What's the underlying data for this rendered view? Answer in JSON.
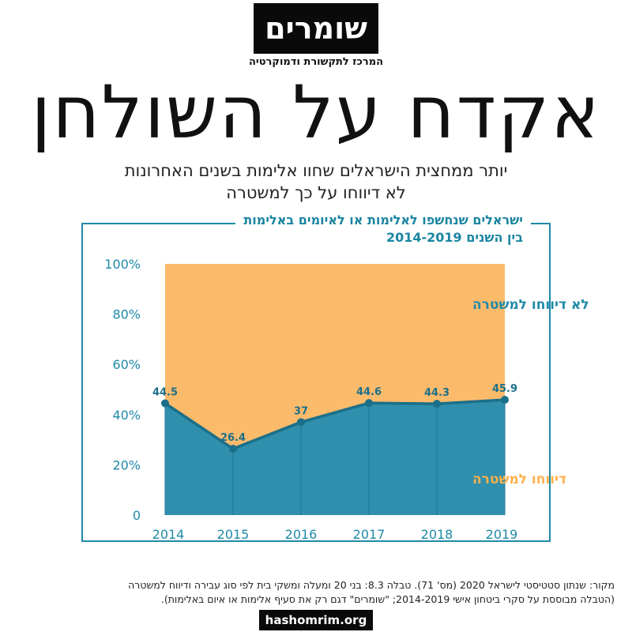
{
  "logo": {
    "name": "שומרים",
    "tagline": "המרכז לתקשורת ודמוקרטיה"
  },
  "headline": "אקדח על השולחן",
  "subtitle": {
    "line1": "יותר ממחצית הישראלים שחוו אלימות בשנים האחרונות",
    "line2": "לא דיווחו על כך למשטרה"
  },
  "chart_data": {
    "type": "area",
    "title_line1": "ישראלים שנחשפו לאלימות או לאיומים באלימות",
    "title_line2": "בין השנים 2014-2019",
    "x": [
      2014,
      2015,
      2016,
      2017,
      2018,
      2019
    ],
    "series": [
      {
        "name": "דיווחו למשטרה",
        "values": [
          44.5,
          26.4,
          37,
          44.6,
          44.3,
          45.9
        ],
        "color": "#2f8fad"
      },
      {
        "name": "לא דיווחו למשטרה",
        "values": [
          55.5,
          73.6,
          63,
          55.4,
          55.7,
          54.1
        ],
        "color": "#fcba6b"
      }
    ],
    "data_labels": [
      "44.5",
      "26.4",
      "37",
      "44.6",
      "44.3",
      "45.9"
    ],
    "y_ticks": [
      "0",
      "20%",
      "40%",
      "60%",
      "80%",
      "100%"
    ],
    "ylim": [
      0,
      100
    ],
    "label_color": "#ffb04a",
    "axis_color": "#1f8aa8",
    "stacked": true
  },
  "source": {
    "line1": "מקור: שנתון סטטיסטי לישראל 2020 (מס' 71). טבלה 8.3: בני 20 ומעלה ומשקי בית לפי סוג עבירה ודיווח למשטרה",
    "line2": "(הטבלה מבוססת על סקרי ביטחון אישי 2014-2019; \"שומרים\" דגם רק את סעיף אלימות או איום באלימות)."
  },
  "url": "hashomrim.org"
}
